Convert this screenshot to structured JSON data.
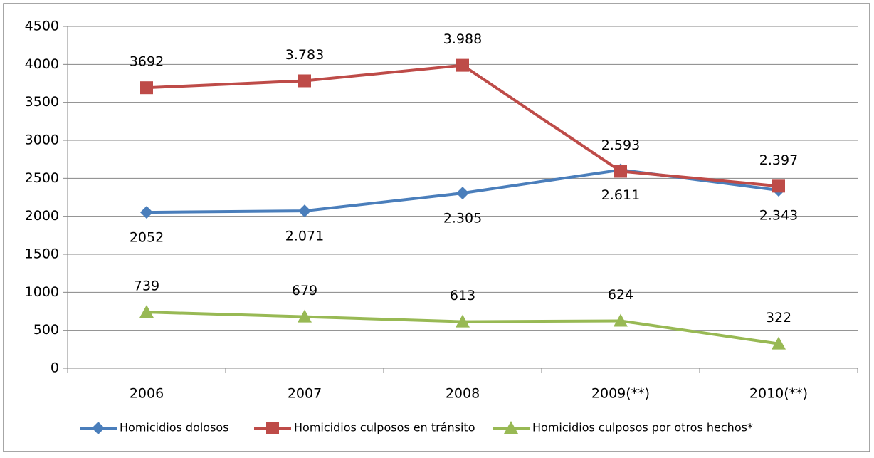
{
  "chart_data": {
    "type": "line",
    "categories": [
      "2006",
      "2007",
      "2008",
      "2009(**)",
      "2010(**)"
    ],
    "series": [
      {
        "name": "Homicidios dolosos",
        "color": "#4a7ebb",
        "marker": "diamond",
        "values": [
          2052,
          2071,
          2305,
          2611,
          2343
        ],
        "value_labels": [
          "2052",
          "2.071",
          "2.305",
          "2.611",
          "2.343"
        ]
      },
      {
        "name": "Homicidios culposos en tránsito",
        "color": "#be4b48",
        "marker": "square",
        "values": [
          3692,
          3783,
          3988,
          2593,
          2397
        ],
        "value_labels": [
          "3692",
          "3.783",
          "3.988",
          "2.593",
          "2.397"
        ]
      },
      {
        "name": "Homicidios culposos por otros hechos*",
        "color": "#98b954",
        "marker": "triangle",
        "values": [
          739,
          679,
          613,
          624,
          322
        ]
      }
    ],
    "ylim": [
      0,
      4500
    ],
    "yticks": [
      0,
      500,
      1000,
      1500,
      2000,
      2500,
      3000,
      3500,
      4000,
      4500
    ],
    "grid": true,
    "legend": "bottom"
  }
}
